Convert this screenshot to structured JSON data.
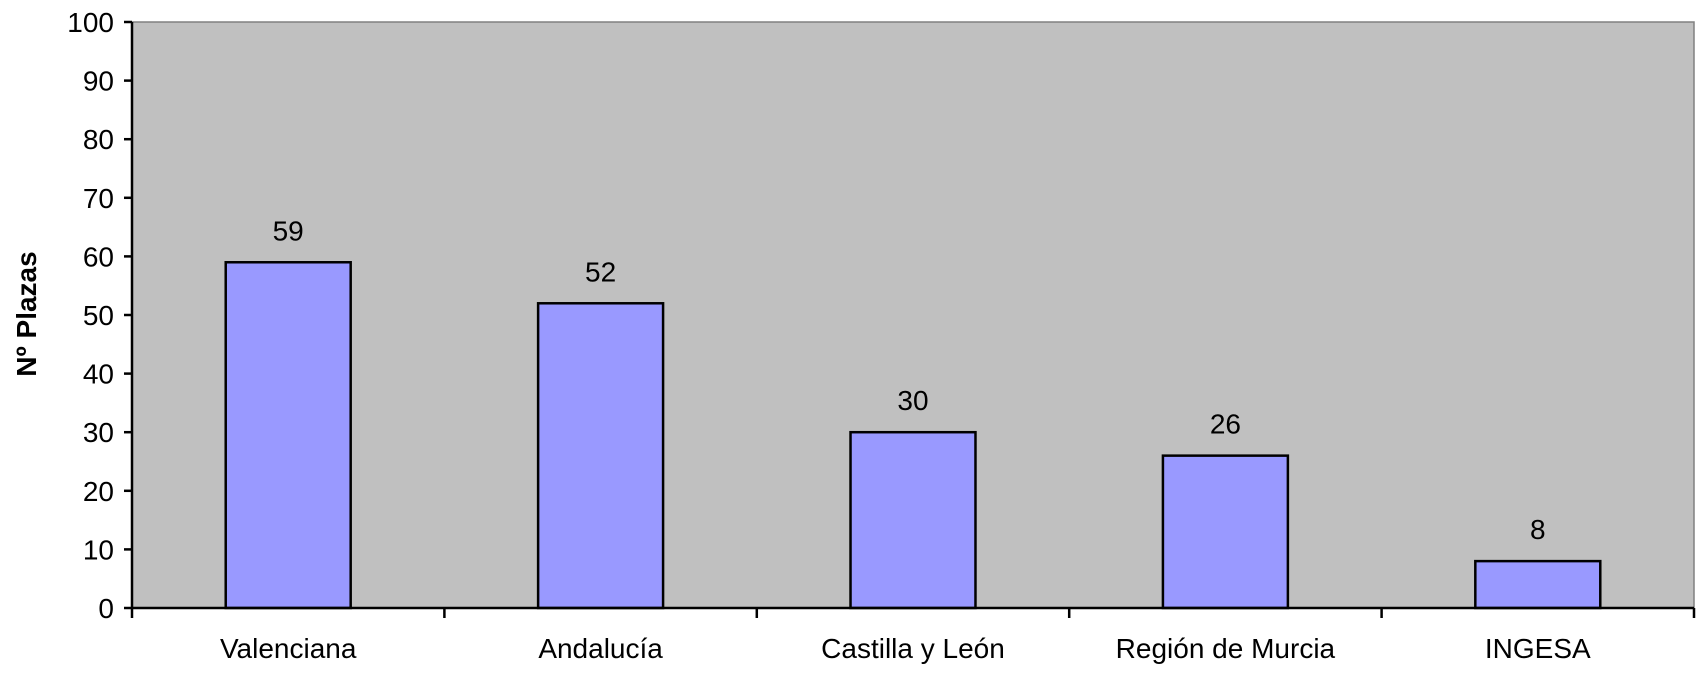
{
  "chart_data": {
    "type": "bar",
    "title": "",
    "xlabel": "",
    "ylabel": "Nº Plazas",
    "categories": [
      "Valenciana",
      "Andalucía",
      "Castilla y León",
      "Región de Murcia",
      "INGESA"
    ],
    "values": [
      59,
      52,
      30,
      26,
      8
    ],
    "data_labels": [
      "59",
      "52",
      "30",
      "26",
      "8"
    ],
    "ylim": [
      0,
      100
    ],
    "yticks": [
      "0",
      "10",
      "20",
      "30",
      "40",
      "50",
      "60",
      "70",
      "80",
      "90",
      "100"
    ],
    "grid": false,
    "legend": "none",
    "colors": {
      "plot_background": "#c0c0c0",
      "bar_fill": "#9999ff",
      "bar_stroke": "#000000"
    }
  }
}
